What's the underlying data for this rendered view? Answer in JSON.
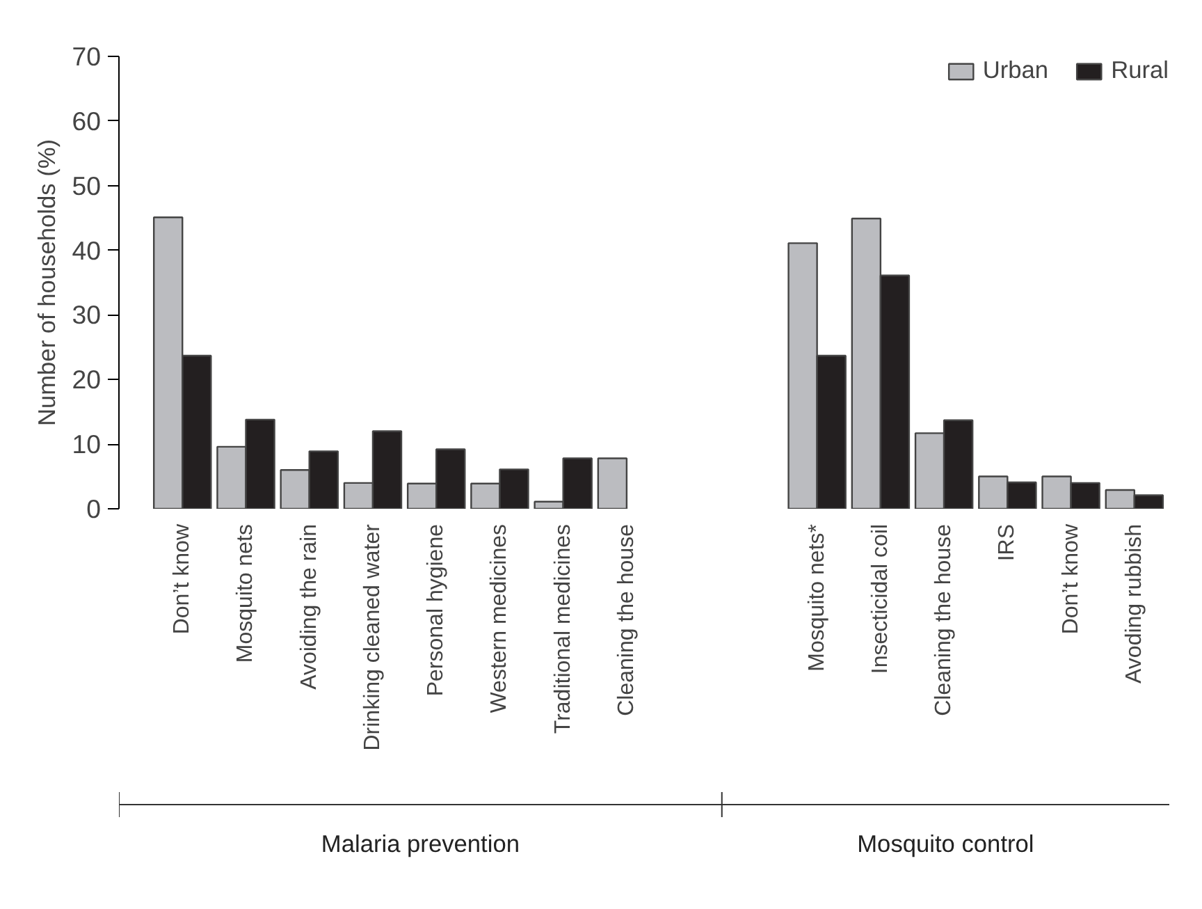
{
  "chart_data": {
    "type": "bar",
    "ylabel": "Number of households (%)",
    "categories": [
      "Don’t know",
      "Mosquito nets",
      "Avoiding the rain",
      "Drinking cleaned water",
      "Personal hygiene",
      "Western medicines",
      "Traditional medicines",
      "Cleaning the house",
      null,
      null,
      "Mosquito nets*",
      "Insecticidal coil",
      "Cleaning the house",
      "IRS",
      "Don’t know",
      "Avoding rubbish"
    ],
    "series": [
      {
        "name": "Urban",
        "color": "#bbbcc0",
        "values": [
          45.1,
          9.6,
          6.0,
          4.0,
          3.9,
          3.9,
          1.1,
          7.8,
          null,
          null,
          41.1,
          44.9,
          11.7,
          5.0,
          5.0,
          2.9
        ]
      },
      {
        "name": "Rural",
        "color": "#231f20",
        "values": [
          23.7,
          13.8,
          8.9,
          12.0,
          9.2,
          6.1,
          7.8,
          null,
          null,
          null,
          23.7,
          36.1,
          13.7,
          4.1,
          4.0,
          2.1
        ]
      }
    ],
    "ylim": [
      0,
      70
    ],
    "yticks": [
      0,
      10,
      20,
      30,
      40,
      50,
      60,
      70
    ],
    "grid": false,
    "legend": "top right",
    "annotations": [
      "Malaria prevention",
      "Mosquito control"
    ]
  }
}
